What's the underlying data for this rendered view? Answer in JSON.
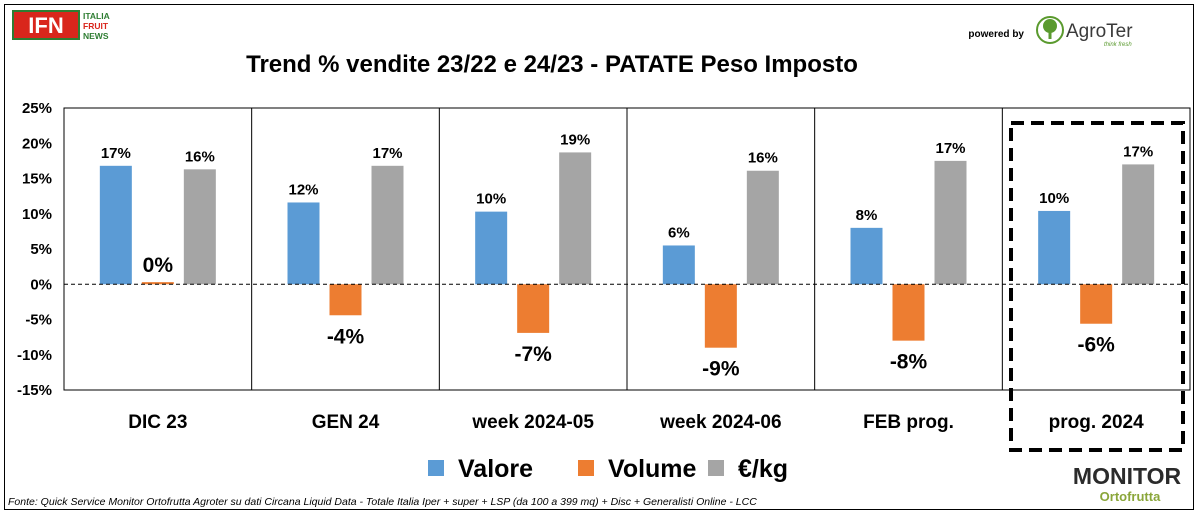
{
  "header": {
    "logo_left_main": "IFN",
    "logo_left_sub": [
      "ITALIA",
      "FRUIT",
      "NEWS"
    ],
    "powered_by": "powered by",
    "logo_right_main": "AgroTer",
    "logo_right_tagline": "think fresh"
  },
  "footer": {
    "source": "Fonte: Quick Service Monitor Ortofrutta Agroter su dati Circana Liquid Data - Totale Italia Iper + super + LSP (da 100 a 399 mq) + Disc + Generalisti Online - LCC",
    "brand_main": "MONITOR",
    "brand_sub": "Ortofrutta"
  },
  "colors": {
    "valore": "#5b9bd5",
    "volume": "#ed7d31",
    "euro_kg": "#a5a5a5"
  },
  "chart_data": {
    "type": "bar",
    "title": "Trend % vendite 23/22 e 24/23 - PATATE Peso Imposto",
    "xlabel": "",
    "ylabel": "",
    "ylim": [
      -15,
      25
    ],
    "yticks": [
      "25%",
      "20%",
      "15%",
      "10%",
      "5%",
      "0%",
      "-5%",
      "-10%",
      "-15%"
    ],
    "ytick_values": [
      25,
      20,
      15,
      10,
      5,
      0,
      -5,
      -10,
      -15
    ],
    "categories": [
      "DIC 23",
      "GEN 24",
      "week 2024-05",
      "week 2024-06",
      "FEB prog.",
      "prog. 2024"
    ],
    "highlighted_category": "prog. 2024",
    "legend_position": "bottom",
    "series": [
      {
        "name": "Valore",
        "values": [
          16.8,
          11.6,
          10.3,
          5.5,
          8.0,
          10.4
        ],
        "labels": [
          "17%",
          "12%",
          "10%",
          "6%",
          "8%",
          "10%"
        ]
      },
      {
        "name": "Volume",
        "values": [
          0.3,
          -4.4,
          -6.9,
          -9.0,
          -8.0,
          -5.6
        ],
        "labels": [
          "0%",
          "-4%",
          "-7%",
          "-9%",
          "-8%",
          "-6%"
        ]
      },
      {
        "name": "€/kg",
        "values": [
          16.3,
          16.8,
          18.7,
          16.1,
          17.5,
          17.0
        ],
        "labels": [
          "16%",
          "17%",
          "19%",
          "16%",
          "17%",
          "17%"
        ]
      }
    ]
  }
}
